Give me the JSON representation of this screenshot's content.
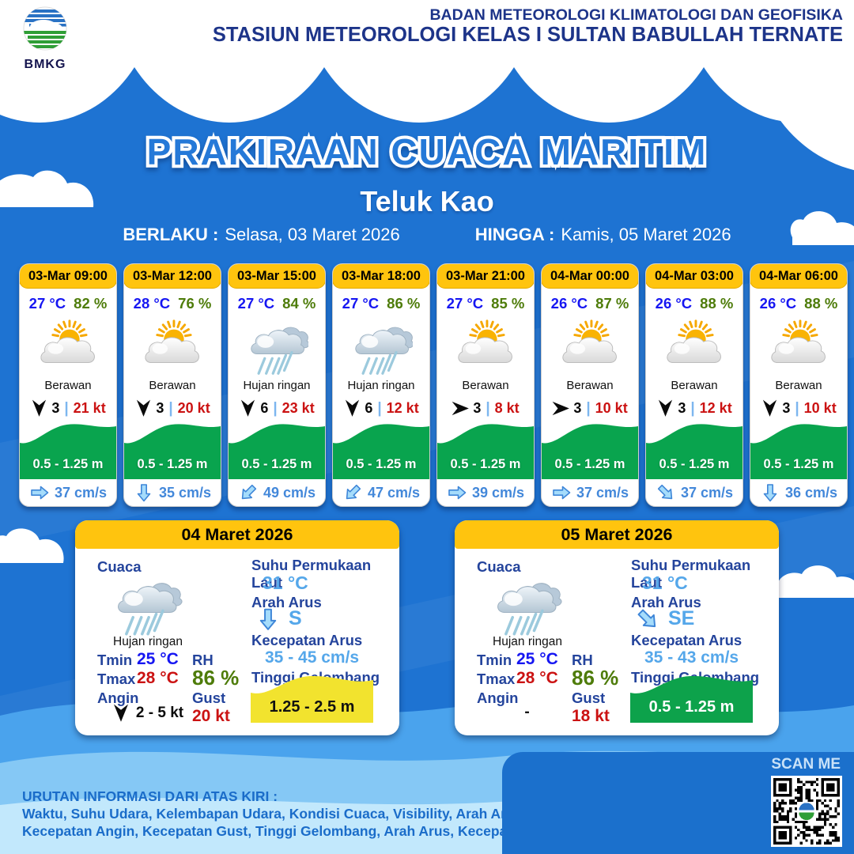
{
  "header": {
    "logo_label": "BMKG",
    "line1": "BADAN METEOROLOGI KLIMATOLOGI DAN GEOFISIKA",
    "line2": "STASIUN METEOROLOGI KELAS I SULTAN BABULLAH TERNATE"
  },
  "title": {
    "main": "PRAKIRAAN CUACA MARITIM",
    "location": "Teluk Kao",
    "valid_from_label": "BERLAKU :",
    "valid_from": "Selasa, 03 Maret 2026",
    "valid_to_label": "HINGGA :",
    "valid_to": "Kamis, 05 Maret 2026"
  },
  "card_labels": {
    "separator": "|"
  },
  "forecasts": [
    {
      "time": "03-Mar 09:00",
      "temp": "27 °C",
      "humidity": "82 %",
      "condition": "Berawan",
      "icon": "berawan",
      "visibility": "3",
      "wind_speed": "21 kt",
      "wind_deg": 180,
      "wave_height": "0.5 - 1.25 m",
      "current_speed": "37 cm/s",
      "current_deg": 0
    },
    {
      "time": "03-Mar 12:00",
      "temp": "28 °C",
      "humidity": "76 %",
      "condition": "Berawan",
      "icon": "berawan",
      "visibility": "3",
      "wind_speed": "20 kt",
      "wind_deg": 180,
      "wave_height": "0.5 - 1.25 m",
      "current_speed": "35 cm/s",
      "current_deg": 90
    },
    {
      "time": "03-Mar 15:00",
      "temp": "27 °C",
      "humidity": "84 %",
      "condition": "Hujan ringan",
      "icon": "hujan",
      "visibility": "6",
      "wind_speed": "23 kt",
      "wind_deg": 180,
      "wave_height": "0.5 - 1.25 m",
      "current_speed": "49 cm/s",
      "current_deg": 135
    },
    {
      "time": "03-Mar 18:00",
      "temp": "27 °C",
      "humidity": "86 %",
      "condition": "Hujan ringan",
      "icon": "hujan",
      "visibility": "6",
      "wind_speed": "12 kt",
      "wind_deg": 180,
      "wave_height": "0.5 - 1.25 m",
      "current_speed": "47 cm/s",
      "current_deg": 135
    },
    {
      "time": "03-Mar 21:00",
      "temp": "27 °C",
      "humidity": "85 %",
      "condition": "Berawan",
      "icon": "berawan",
      "visibility": "3",
      "wind_speed": "8 kt",
      "wind_deg": 90,
      "wave_height": "0.5 - 1.25 m",
      "current_speed": "39 cm/s",
      "current_deg": 0
    },
    {
      "time": "04-Mar 00:00",
      "temp": "26 °C",
      "humidity": "87 %",
      "condition": "Berawan",
      "icon": "berawan",
      "visibility": "3",
      "wind_speed": "10 kt",
      "wind_deg": 90,
      "wave_height": "0.5 - 1.25 m",
      "current_speed": "37 cm/s",
      "current_deg": 0
    },
    {
      "time": "04-Mar 03:00",
      "temp": "26 °C",
      "humidity": "88 %",
      "condition": "Berawan",
      "icon": "berawan",
      "visibility": "3",
      "wind_speed": "12 kt",
      "wind_deg": 180,
      "wave_height": "0.5 - 1.25 m",
      "current_speed": "37 cm/s",
      "current_deg": 45
    },
    {
      "time": "04-Mar 06:00",
      "temp": "26 °C",
      "humidity": "88 %",
      "condition": "Berawan",
      "icon": "berawan",
      "visibility": "3",
      "wind_speed": "10 kt",
      "wind_deg": 180,
      "wave_height": "0.5 - 1.25 m",
      "current_speed": "36 cm/s",
      "current_deg": 90
    }
  ],
  "daily_labels": {
    "cuaca": "Cuaca",
    "tmin": "Tmin",
    "tmax": "Tmax",
    "angin": "Angin",
    "rh": "RH",
    "gust": "Gust",
    "suhu_permukaan_laut": "Suhu Permukaan Laut",
    "arah_arus": "Arah Arus",
    "kecepatan_arus": "Kecepatan Arus",
    "tinggi_gelombang": "Tinggi Gelombang"
  },
  "daily": [
    {
      "date": "04 Maret 2026",
      "condition": "Hujan ringan",
      "icon": "hujan",
      "tmin": "25 °C",
      "tmax": "28 °C",
      "wind_text": "2 - 5 kt",
      "wind_deg": 180,
      "rh": "86 %",
      "gust": "20 kt",
      "sst": "31 °C",
      "current_dir": "S",
      "current_deg": 90,
      "current_speed": "35 - 45 cm/s",
      "wave_height": "1.25 - 2.5 m",
      "wave_color": "#f2e32e",
      "wave_text_color": "#111111"
    },
    {
      "date": "05 Maret 2026",
      "condition": "Hujan ringan",
      "icon": "hujan",
      "tmin": "25 °C",
      "tmax": "28 °C",
      "wind_text": "-",
      "wind_deg": null,
      "rh": "86 %",
      "gust": "18 kt",
      "sst": "31 °C",
      "current_dir": "SE",
      "current_deg": 45,
      "current_speed": "35 - 43 cm/s",
      "wave_height": "0.5 - 1.25 m",
      "wave_color": "#0da24b",
      "wave_text_color": "#ffffff"
    }
  ],
  "footer": {
    "heading": "URUTAN INFORMASI DARI ATAS KIRI :",
    "line1": "Waktu, Suhu Udara, Kelembapan Udara, Kondisi Cuaca, Visibility, Arah Angin,",
    "line2": "Kecepatan Angin, Kecepatan Gust, Tinggi Gelombang, Arah Arus, Kecepatan Arus",
    "scan_label": "SCAN ME"
  },
  "colors": {
    "background_blue": "#1e73d2",
    "header_navy": "#1d3489",
    "accent_yellow": "#ffc40e",
    "wave_green": "#09a44e",
    "temp_blue": "#1616f2",
    "humidity_olive": "#4e7c0a",
    "speed_red": "#cb1212",
    "current_blue": "#4388da",
    "light_value_blue": "#55a7ea",
    "panel_blue": "#1b70cc"
  }
}
